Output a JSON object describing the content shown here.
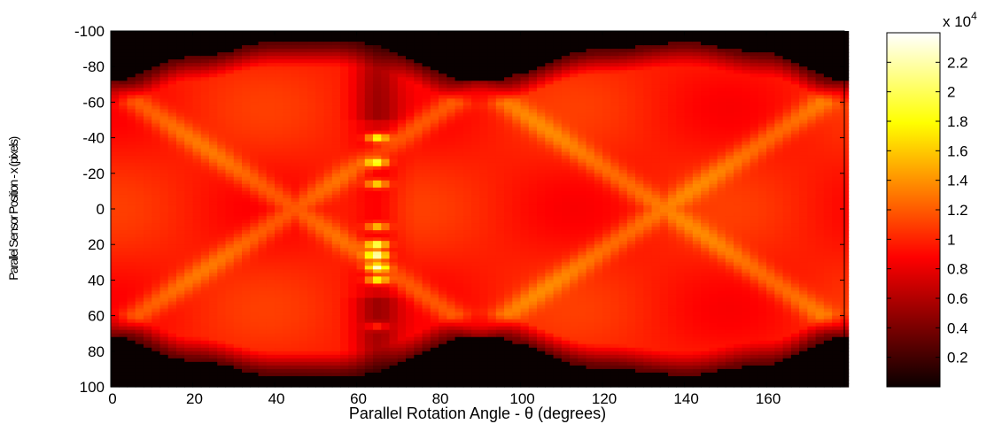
{
  "chart_data": [
    {
      "type": "heatmap",
      "title": "",
      "xlabel": "Parallel Rotation Angle - θ (degrees)",
      "ylabel": "Parallel Sensor Position - x (pixels)",
      "xlim": [
        0,
        179
      ],
      "ylim": [
        -100,
        100
      ],
      "y_reversed": true,
      "x_ticks": [
        "0",
        "20",
        "40",
        "60",
        "80",
        "100",
        "120",
        "140",
        "160"
      ],
      "x_tick_values": [
        0,
        20,
        40,
        60,
        80,
        100,
        120,
        140,
        160
      ],
      "y_ticks": [
        "-100",
        "-80",
        "-60",
        "-40",
        "-20",
        "0",
        "20",
        "40",
        "60",
        "80",
        "100"
      ],
      "y_tick_values": [
        -100,
        -80,
        -60,
        -40,
        -20,
        0,
        20,
        40,
        60,
        80,
        100
      ],
      "colormap": "hot",
      "value_range": [
        0,
        24000
      ],
      "support_halfwidth": {
        "angles_deg": [
          0,
          20,
          40,
          60,
          90,
          120,
          140,
          160,
          179
        ],
        "halfwidth_px": [
          70,
          84,
          92,
          92,
          70,
          88,
          92,
          86,
          70
        ]
      },
      "features": {
        "bright_ridge_angles_deg": [
          45,
          135
        ],
        "bright_band_angle_deg": 65,
        "bright_spots": [
          {
            "angle": 65,
            "position": -40,
            "value": 20000
          },
          {
            "angle": 65,
            "position": -26,
            "value": 19000
          },
          {
            "angle": 65,
            "position": -14,
            "value": 18000
          },
          {
            "angle": 65,
            "position": 10,
            "value": 17000
          },
          {
            "angle": 65,
            "position": 20,
            "value": 22000
          },
          {
            "angle": 65,
            "position": 26,
            "value": 23000
          },
          {
            "angle": 65,
            "position": 33,
            "value": 21000
          },
          {
            "angle": 65,
            "position": 40,
            "value": 20000
          },
          {
            "angle": 65,
            "position": -70,
            "value": 9000
          },
          {
            "angle": 65,
            "position": 66,
            "value": 14000
          }
        ]
      },
      "grid": false,
      "legend": "none"
    },
    {
      "type": "colorbar",
      "exponent_label": "x 10",
      "exponent": "4",
      "ticks": [
        "0.2",
        "0.4",
        "0.6",
        "0.8",
        "1",
        "1.2",
        "1.4",
        "1.6",
        "1.8",
        "2",
        "2.2"
      ],
      "tick_values": [
        0.2,
        0.4,
        0.6,
        0.8,
        1.0,
        1.2,
        1.4,
        1.6,
        1.8,
        2.0,
        2.2
      ],
      "range": [
        0,
        2.4
      ]
    }
  ],
  "colors": {
    "background": "#ffffff",
    "axis": "#000000"
  }
}
